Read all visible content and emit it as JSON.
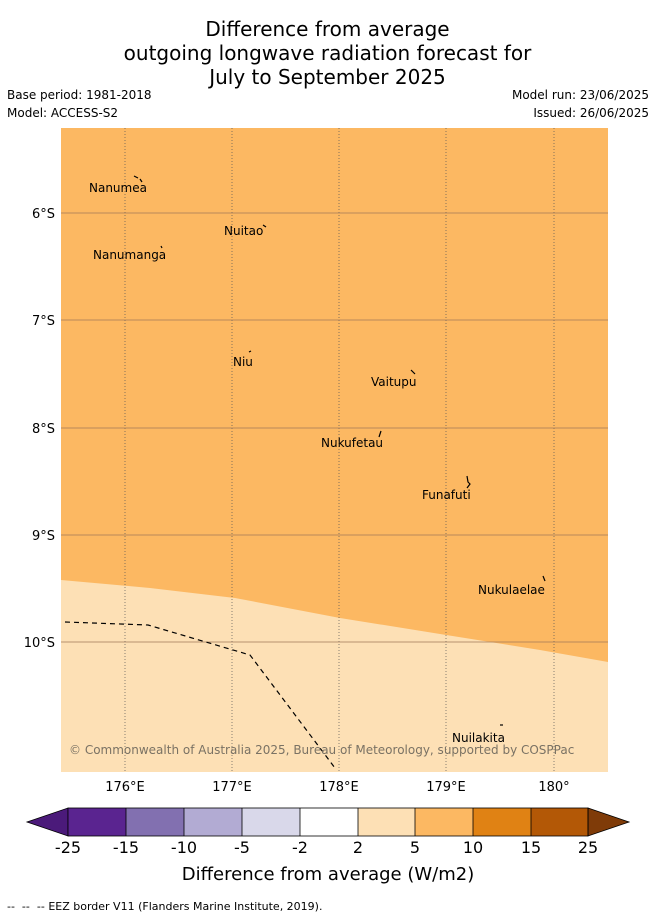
{
  "title": {
    "line1": "Difference from average",
    "line2": "outgoing longwave radiation forecast for",
    "line3": "July to September 2025"
  },
  "meta": {
    "base_period": "Base period: 1981-2018",
    "model": "Model: ACCESS-S2",
    "model_run": "Model run: 23/06/2025",
    "issued": "Issued: 26/06/2025"
  },
  "map": {
    "latitude_labels": [
      "6°S",
      "7°S",
      "8°S",
      "9°S",
      "10°S"
    ],
    "longitude_labels": [
      "176°E",
      "177°E",
      "178°E",
      "179°E",
      "180°"
    ],
    "places": [
      {
        "name": "Nanumea"
      },
      {
        "name": "Nuitao"
      },
      {
        "name": "Nanumanga"
      },
      {
        "name": "Niu"
      },
      {
        "name": "Vaitupu"
      },
      {
        "name": "Nukufetau"
      },
      {
        "name": "Funafuti"
      },
      {
        "name": "Nukulaelae"
      },
      {
        "name": "Nuilakita"
      }
    ],
    "copyright": "© Commonwealth of Australia 2025, Bureau of Meteorology, supported by COSPPac",
    "fill_colors": {
      "5_to_10": "#fcb862",
      "2_to_5": "#fde0b5"
    }
  },
  "colorbar": {
    "tick_labels": [
      "-25",
      "-15",
      "-10",
      "-5",
      "-2",
      "2",
      "5",
      "10",
      "15",
      "25"
    ],
    "colors": [
      "#4b1a7a",
      "#5a2490",
      "#8270b0",
      "#b2abd3",
      "#d9d8ea",
      "#ffffff",
      "#fde0b5",
      "#fcb862",
      "#e08214",
      "#b35806",
      "#7f3b08"
    ],
    "label": "Difference from average (W/m2)"
  },
  "footer": {
    "legend_symbol": "--  --  --",
    "legend_text": "EEZ border V11 (Flanders Marine Institute, 2019)."
  }
}
